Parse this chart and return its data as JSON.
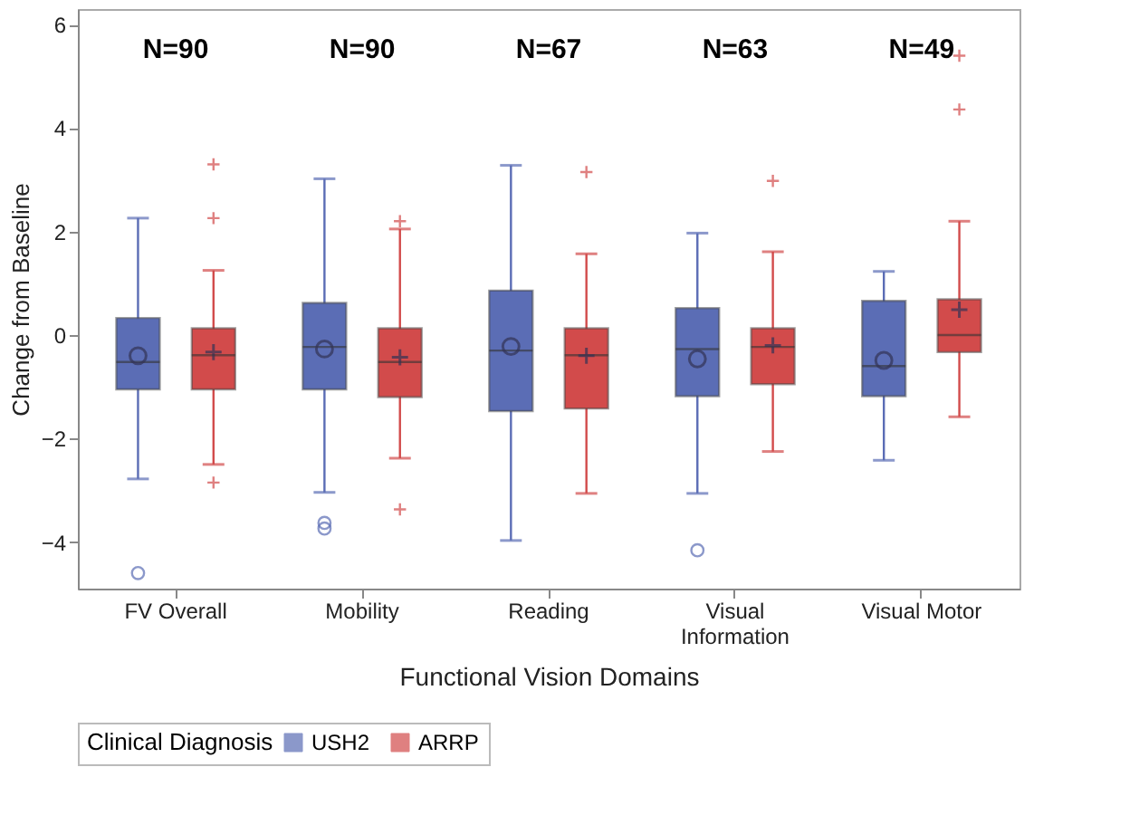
{
  "chart_data": {
    "type": "box",
    "xlabel": "Functional Vision Domains",
    "ylabel": "Change from Baseline",
    "legend_title": "Clinical Diagnosis",
    "legend": "bottom",
    "grid": false,
    "categories": [
      "FV Overall",
      "Mobility",
      "Reading",
      "Visual Information",
      "Visual Motor"
    ],
    "ylim": [
      -4.9,
      6.3
    ],
    "yticks": [
      -4,
      -2,
      0,
      2,
      4,
      6
    ],
    "series": [
      {
        "name": "USH2",
        "color": "#5b6db5",
        "marker": "circle",
        "boxes": [
          {
            "low": -2.78,
            "q1": -1.05,
            "median": -0.52,
            "q3": 0.33,
            "high": 2.26,
            "mean": -0.4,
            "outliers": [
              -4.6
            ]
          },
          {
            "low": -3.04,
            "q1": -1.05,
            "median": -0.23,
            "q3": 0.62,
            "high": 3.02,
            "mean": -0.27,
            "outliers": [
              -3.63,
              -3.74
            ]
          },
          {
            "low": -3.97,
            "q1": -1.47,
            "median": -0.3,
            "q3": 0.86,
            "high": 3.28,
            "mean": -0.22
          },
          {
            "low": -3.06,
            "q1": -1.18,
            "median": -0.27,
            "q3": 0.52,
            "high": 1.97,
            "mean": -0.46,
            "outliers": [
              -4.16
            ]
          },
          {
            "low": -2.42,
            "q1": -1.18,
            "median": -0.6,
            "q3": 0.66,
            "high": 1.23,
            "mean": -0.49
          }
        ]
      },
      {
        "name": "ARRP",
        "color": "#d24b4b",
        "marker": "cross",
        "boxes": [
          {
            "low": -2.5,
            "q1": -1.05,
            "median": -0.39,
            "q3": 0.13,
            "high": 1.25,
            "mean": -0.33,
            "outliers": [
              3.3,
              2.26,
              -2.85
            ]
          },
          {
            "low": -2.38,
            "q1": -1.2,
            "median": -0.52,
            "q3": 0.13,
            "high": 2.05,
            "mean": -0.43,
            "outliers": [
              2.2,
              -3.37
            ]
          },
          {
            "low": -3.06,
            "q1": -1.42,
            "median": -0.39,
            "q3": 0.13,
            "high": 1.57,
            "mean": -0.4,
            "outliers": [
              3.15
            ]
          },
          {
            "low": -2.25,
            "q1": -0.95,
            "median": -0.23,
            "q3": 0.13,
            "high": 1.61,
            "mean": -0.2,
            "outliers": [
              2.98
            ]
          },
          {
            "low": -1.58,
            "q1": -0.33,
            "median": 0.0,
            "q3": 0.69,
            "high": 2.2,
            "mean": 0.49,
            "outliers": [
              4.36,
              5.4
            ]
          }
        ]
      }
    ],
    "annotations": [
      "N=90",
      "N=90",
      "N=67",
      "N=63",
      "N=49"
    ]
  }
}
